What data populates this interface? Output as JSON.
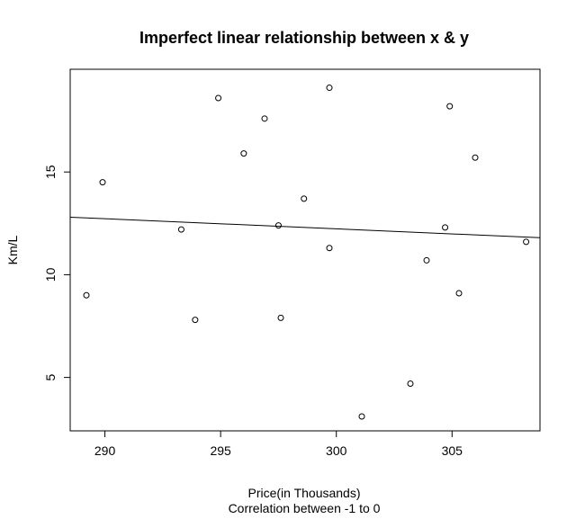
{
  "chart_data": {
    "type": "scatter",
    "title": "Imperfect linear relationship between x & y",
    "xlabel": "Price(in Thousands)",
    "xlabel_sub": "Correlation between -1 to 0",
    "ylabel": "Km/L",
    "xlim": [
      288.5,
      308.8
    ],
    "ylim": [
      2.4,
      20.0
    ],
    "x_ticks": [
      290,
      295,
      300,
      305
    ],
    "y_ticks": [
      5,
      10,
      15
    ],
    "grid": false,
    "legend": "none",
    "points": [
      {
        "x": 289.2,
        "y": 9.0
      },
      {
        "x": 289.9,
        "y": 14.5
      },
      {
        "x": 293.3,
        "y": 12.2
      },
      {
        "x": 293.9,
        "y": 7.8
      },
      {
        "x": 294.9,
        "y": 18.6
      },
      {
        "x": 296.0,
        "y": 15.9
      },
      {
        "x": 296.9,
        "y": 17.6
      },
      {
        "x": 297.5,
        "y": 12.4
      },
      {
        "x": 297.6,
        "y": 7.9
      },
      {
        "x": 298.6,
        "y": 13.7
      },
      {
        "x": 299.7,
        "y": 19.1
      },
      {
        "x": 299.7,
        "y": 11.3
      },
      {
        "x": 301.1,
        "y": 3.1
      },
      {
        "x": 303.2,
        "y": 4.7
      },
      {
        "x": 303.9,
        "y": 10.7
      },
      {
        "x": 304.7,
        "y": 12.3
      },
      {
        "x": 304.9,
        "y": 18.2
      },
      {
        "x": 305.3,
        "y": 9.1
      },
      {
        "x": 306.0,
        "y": 15.7
      },
      {
        "x": 308.2,
        "y": 11.6
      }
    ],
    "regression_line": {
      "x": [
        288.5,
        308.8
      ],
      "y": [
        12.8,
        11.8
      ]
    }
  }
}
